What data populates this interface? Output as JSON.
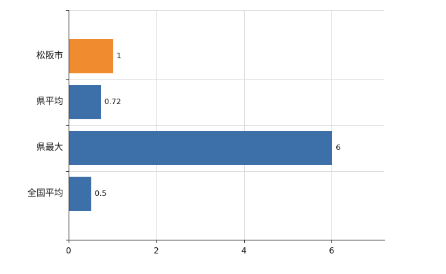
{
  "chart_data": {
    "type": "bar",
    "orientation": "horizontal",
    "title": "",
    "xlabel": "",
    "ylabel": "",
    "categories": [
      "松阪市",
      "県平均",
      "県最大",
      "全国平均"
    ],
    "values": [
      1,
      0.72,
      6,
      0.5
    ],
    "value_labels": [
      "1",
      "0.72",
      "6",
      "0.5"
    ],
    "bar_colors": [
      "#f08b2f",
      "#3d6fa8",
      "#3d6fa8",
      "#3d6fa8"
    ],
    "x_ticks": [
      "0",
      "2",
      "4",
      "6"
    ],
    "x_tick_values": [
      0,
      2,
      4,
      6
    ],
    "xlim": [
      0,
      7.2
    ],
    "grid": true,
    "legend": "none"
  },
  "colors": {
    "grid": "#d9d9d9",
    "axis": "#2b2b2b",
    "background": "#ffffff",
    "text": "#111111"
  }
}
